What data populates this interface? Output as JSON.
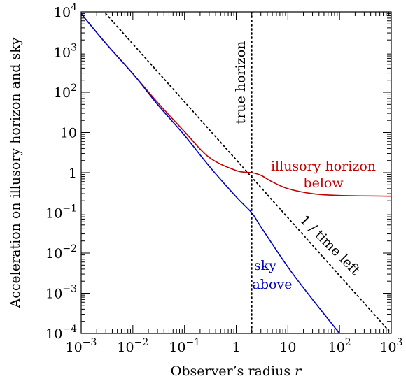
{
  "chart_data": {
    "type": "line",
    "xlabel": "Observer’s radius",
    "xlabel_var": "r",
    "ylabel": "Acceleration on illusory horizon and sky",
    "xscale": "log",
    "yscale": "log",
    "xlim": [
      0.001,
      1000
    ],
    "ylim": [
      0.0001,
      10000
    ],
    "x_ticks": [
      {
        "value": 0.001,
        "base": "10",
        "exp": "−3"
      },
      {
        "value": 0.01,
        "base": "10",
        "exp": "−2"
      },
      {
        "value": 0.1,
        "base": "10",
        "exp": "−1"
      },
      {
        "value": 1,
        "base": "1",
        "exp": ""
      },
      {
        "value": 10,
        "base": "10",
        "exp": ""
      },
      {
        "value": 100,
        "base": "10",
        "exp": "2"
      },
      {
        "value": 1000,
        "base": "10",
        "exp": "3"
      }
    ],
    "y_ticks": [
      {
        "value": 0.0001,
        "base": "10",
        "exp": "−4"
      },
      {
        "value": 0.001,
        "base": "10",
        "exp": "−3"
      },
      {
        "value": 0.01,
        "base": "10",
        "exp": "−2"
      },
      {
        "value": 0.1,
        "base": "10",
        "exp": "−1"
      },
      {
        "value": 1,
        "base": "1",
        "exp": ""
      },
      {
        "value": 10,
        "base": "10",
        "exp": ""
      },
      {
        "value": 100,
        "base": "10",
        "exp": "2"
      },
      {
        "value": 1000,
        "base": "10",
        "exp": "3"
      },
      {
        "value": 10000,
        "base": "10",
        "exp": "4"
      }
    ],
    "series": [
      {
        "color": "#c00000",
        "style": "solid",
        "x": [
          0.001,
          0.003,
          0.01,
          0.03,
          0.1,
          0.3,
          1,
          2,
          3,
          5,
          10,
          30,
          100,
          1000
        ],
        "y": [
          9000,
          1650,
          290,
          56,
          10.5,
          2.4,
          1.13,
          1.0,
          0.86,
          0.59,
          0.4,
          0.3,
          0.27,
          0.26
        ]
      },
      {
        "color": "#0000c0",
        "style": "solid",
        "x": [
          0.001,
          0.003,
          0.01,
          0.03,
          0.1,
          0.3,
          1,
          2,
          3,
          10,
          30,
          100
        ],
        "y": [
          9000,
          1650,
          290,
          50,
          8.5,
          1.45,
          0.25,
          0.1,
          0.045,
          0.0045,
          0.0007,
          0.0001
        ]
      },
      {
        "color": "#000000",
        "style": "dotted",
        "x": [
          0.003,
          1000
        ],
        "y": [
          9000,
          0.0001
        ]
      }
    ],
    "vlines": [
      {
        "x": 2,
        "style": "dotted",
        "color": "#000000"
      }
    ],
    "annotations": {
      "true_horizon": "true horizon",
      "illusory_line1": "illusory horizon",
      "illusory_line2": "below",
      "sky_line1": "sky",
      "sky_line2": "above",
      "time_left": "1 / time left"
    },
    "grid": false,
    "legend": "none"
  }
}
